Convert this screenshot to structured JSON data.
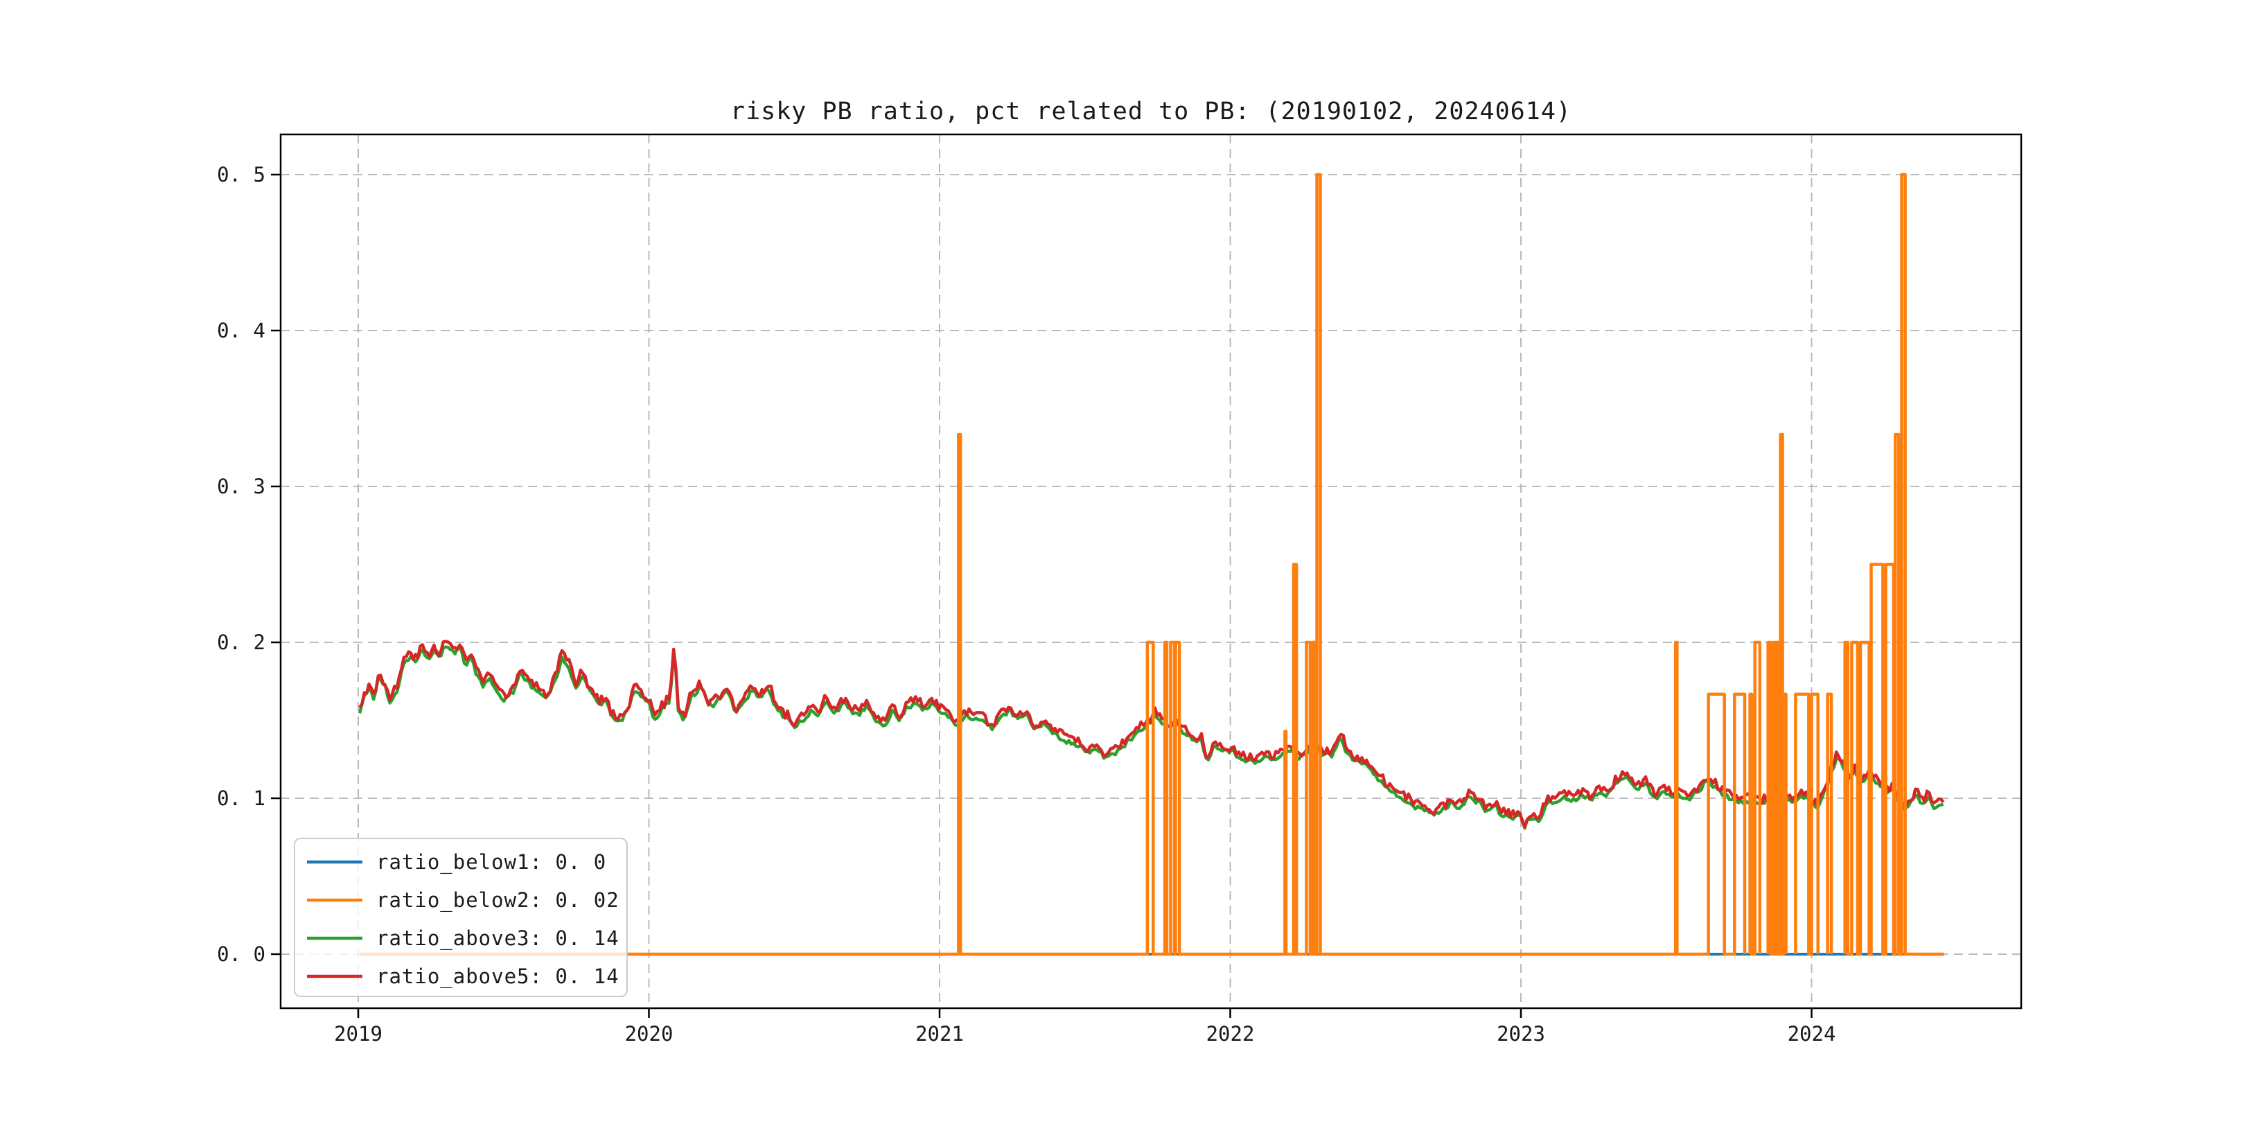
{
  "chart_data": {
    "type": "line",
    "title": "risky PB ratio, pct related to PB: (20190102, 20240614)",
    "date_range": [
      "20190102",
      "20240614"
    ],
    "grid": true,
    "x_axis": {
      "tick_labels": [
        "2019",
        "2020",
        "2021",
        "2022",
        "2023",
        "2024"
      ],
      "tick_years": [
        2019,
        2020,
        2021,
        2022,
        2023,
        2024
      ]
    },
    "y_axis": {
      "tick_labels": [
        "0. 0",
        "0. 1",
        "0. 2",
        "0. 3",
        "0. 4",
        "0. 5"
      ],
      "tick_values": [
        0.0,
        0.1,
        0.2,
        0.3,
        0.4,
        0.5
      ],
      "ylim": [
        -0.035,
        0.526
      ]
    },
    "legend": {
      "position": "lower left",
      "entries": [
        {
          "label": "ratio_below1: 0. 0",
          "series": "ratio_below1",
          "color": "#1f77b4"
        },
        {
          "label": "ratio_below2: 0. 02",
          "series": "ratio_below2",
          "color": "#ff7f0e"
        },
        {
          "label": "ratio_above3: 0. 14",
          "series": "ratio_above3",
          "color": "#2ca02c"
        },
        {
          "label": "ratio_above5: 0. 14",
          "series": "ratio_above5",
          "color": "#d62728"
        }
      ]
    },
    "series": [
      {
        "name": "ratio_below1",
        "color": "#1f77b4",
        "kind": "constant",
        "value": 0.0,
        "t_start": 2019.005,
        "t_end": 2024.455,
        "width": 4
      },
      {
        "name": "ratio_below2",
        "color": "#ff7f0e",
        "kind": "step-pulses",
        "baseline": 0.0,
        "t_start": 2019.005,
        "t_end": 2024.455,
        "width": 4.5,
        "dense_window": [
          2023.78,
          2024.325
        ],
        "events": [
          [
            2021.065,
            2021.072,
            0.3333
          ],
          [
            2021.715,
            2021.735,
            0.2
          ],
          [
            2021.775,
            2021.782,
            0.2
          ],
          [
            2021.795,
            2021.808,
            0.2
          ],
          [
            2021.812,
            2021.825,
            0.2
          ],
          [
            2022.188,
            2022.192,
            0.1429
          ],
          [
            2022.218,
            2022.228,
            0.25
          ],
          [
            2022.262,
            2022.275,
            0.2
          ],
          [
            2022.282,
            2022.29,
            0.2
          ],
          [
            2022.298,
            2022.31,
            0.5
          ],
          [
            2023.532,
            2023.537,
            0.2
          ],
          [
            2023.645,
            2023.7,
            0.1667
          ],
          [
            2023.735,
            2023.77,
            0.1667
          ],
          [
            2023.788,
            2023.794,
            0.1667
          ],
          [
            2023.805,
            2023.822,
            0.2
          ],
          [
            2023.85,
            2023.86,
            0.2
          ],
          [
            2023.868,
            2023.878,
            0.2
          ],
          [
            2023.882,
            2023.89,
            0.2
          ],
          [
            2023.893,
            2023.9,
            0.3333
          ],
          [
            2023.903,
            2023.912,
            0.1667
          ],
          [
            2023.945,
            2023.99,
            0.1667
          ],
          [
            2024.0,
            2024.022,
            0.1667
          ],
          [
            2024.055,
            2024.068,
            0.1667
          ],
          [
            2024.115,
            2024.125,
            0.2
          ],
          [
            2024.138,
            2024.158,
            0.2
          ],
          [
            2024.168,
            2024.198,
            0.2
          ],
          [
            2024.205,
            2024.245,
            0.25
          ],
          [
            2024.255,
            2024.282,
            0.25
          ],
          [
            2024.288,
            2024.3,
            0.3333
          ],
          [
            2024.31,
            2024.322,
            0.5
          ]
        ]
      },
      {
        "name": "ratio_above3",
        "color": "#2ca02c",
        "kind": "anchors",
        "anchors_ref": "pb_anchors",
        "offset": -0.0025,
        "noise": 0.0015,
        "seed": 11,
        "width": 4.5
      },
      {
        "name": "ratio_above5",
        "color": "#d62728",
        "kind": "anchors",
        "anchors_ref": "pb_anchors",
        "offset": 0,
        "noise": 0.0028,
        "seed": 3,
        "width": 4.5
      }
    ],
    "pb_anchors": [
      [
        2019.005,
        0.157
      ],
      [
        2019.02,
        0.168
      ],
      [
        2019.04,
        0.172
      ],
      [
        2019.055,
        0.167
      ],
      [
        2019.07,
        0.18
      ],
      [
        2019.09,
        0.175
      ],
      [
        2019.11,
        0.163
      ],
      [
        2019.13,
        0.171
      ],
      [
        2019.16,
        0.19
      ],
      [
        2019.18,
        0.193
      ],
      [
        2019.2,
        0.19
      ],
      [
        2019.22,
        0.197
      ],
      [
        2019.24,
        0.192
      ],
      [
        2019.26,
        0.197
      ],
      [
        2019.28,
        0.194
      ],
      [
        2019.3,
        0.2
      ],
      [
        2019.33,
        0.196
      ],
      [
        2019.35,
        0.199
      ],
      [
        2019.37,
        0.189
      ],
      [
        2019.39,
        0.192
      ],
      [
        2019.41,
        0.181
      ],
      [
        2019.43,
        0.175
      ],
      [
        2019.45,
        0.18
      ],
      [
        2019.47,
        0.172
      ],
      [
        2019.5,
        0.166
      ],
      [
        2019.53,
        0.17
      ],
      [
        2019.56,
        0.183
      ],
      [
        2019.58,
        0.178
      ],
      [
        2019.6,
        0.174
      ],
      [
        2019.63,
        0.168
      ],
      [
        2019.65,
        0.167
      ],
      [
        2019.68,
        0.179
      ],
      [
        2019.7,
        0.192
      ],
      [
        2019.72,
        0.188
      ],
      [
        2019.75,
        0.173
      ],
      [
        2019.77,
        0.181
      ],
      [
        2019.8,
        0.17
      ],
      [
        2019.83,
        0.163
      ],
      [
        2019.85,
        0.165
      ],
      [
        2019.87,
        0.156
      ],
      [
        2019.9,
        0.151
      ],
      [
        2019.93,
        0.16
      ],
      [
        2019.95,
        0.172
      ],
      [
        2019.98,
        0.167
      ],
      [
        2020.0,
        0.164
      ],
      [
        2020.02,
        0.153
      ],
      [
        2020.05,
        0.16
      ],
      [
        2020.07,
        0.165
      ],
      [
        2020.088,
        0.198
      ],
      [
        2020.1,
        0.158
      ],
      [
        2020.12,
        0.154
      ],
      [
        2020.15,
        0.169
      ],
      [
        2020.18,
        0.173
      ],
      [
        2020.21,
        0.161
      ],
      [
        2020.24,
        0.166
      ],
      [
        2020.27,
        0.172
      ],
      [
        2020.3,
        0.158
      ],
      [
        2020.33,
        0.165
      ],
      [
        2020.36,
        0.172
      ],
      [
        2020.38,
        0.167
      ],
      [
        2020.41,
        0.173
      ],
      [
        2020.44,
        0.16
      ],
      [
        2020.47,
        0.154
      ],
      [
        2020.5,
        0.149
      ],
      [
        2020.53,
        0.153
      ],
      [
        2020.56,
        0.158
      ],
      [
        2020.58,
        0.155
      ],
      [
        2020.61,
        0.164
      ],
      [
        2020.64,
        0.158
      ],
      [
        2020.67,
        0.163
      ],
      [
        2020.7,
        0.158
      ],
      [
        2020.72,
        0.156
      ],
      [
        2020.75,
        0.161
      ],
      [
        2020.78,
        0.152
      ],
      [
        2020.81,
        0.15
      ],
      [
        2020.84,
        0.158
      ],
      [
        2020.86,
        0.153
      ],
      [
        2020.89,
        0.161
      ],
      [
        2020.92,
        0.164
      ],
      [
        2020.95,
        0.159
      ],
      [
        2020.98,
        0.163
      ],
      [
        2021.0,
        0.158
      ],
      [
        2021.03,
        0.155
      ],
      [
        2021.06,
        0.15
      ],
      [
        2021.09,
        0.156
      ],
      [
        2021.12,
        0.153
      ],
      [
        2021.15,
        0.152
      ],
      [
        2021.18,
        0.147
      ],
      [
        2021.21,
        0.155
      ],
      [
        2021.24,
        0.158
      ],
      [
        2021.27,
        0.154
      ],
      [
        2021.3,
        0.155
      ],
      [
        2021.33,
        0.147
      ],
      [
        2021.36,
        0.151
      ],
      [
        2021.39,
        0.144
      ],
      [
        2021.42,
        0.141
      ],
      [
        2021.45,
        0.138
      ],
      [
        2021.48,
        0.136
      ],
      [
        2021.51,
        0.131
      ],
      [
        2021.54,
        0.134
      ],
      [
        2021.57,
        0.129
      ],
      [
        2021.6,
        0.131
      ],
      [
        2021.63,
        0.136
      ],
      [
        2021.66,
        0.141
      ],
      [
        2021.69,
        0.147
      ],
      [
        2021.72,
        0.15
      ],
      [
        2021.74,
        0.156
      ],
      [
        2021.76,
        0.152
      ],
      [
        2021.79,
        0.148
      ],
      [
        2021.82,
        0.15
      ],
      [
        2021.84,
        0.145
      ],
      [
        2021.87,
        0.141
      ],
      [
        2021.9,
        0.139
      ],
      [
        2021.92,
        0.128
      ],
      [
        2021.95,
        0.136
      ],
      [
        2021.98,
        0.134
      ],
      [
        2022.0,
        0.133
      ],
      [
        2022.03,
        0.129
      ],
      [
        2022.06,
        0.127
      ],
      [
        2022.09,
        0.125
      ],
      [
        2022.12,
        0.129
      ],
      [
        2022.15,
        0.127
      ],
      [
        2022.18,
        0.13
      ],
      [
        2022.21,
        0.134
      ],
      [
        2022.23,
        0.128
      ],
      [
        2022.26,
        0.131
      ],
      [
        2022.29,
        0.135
      ],
      [
        2022.32,
        0.131
      ],
      [
        2022.35,
        0.13
      ],
      [
        2022.38,
        0.141
      ],
      [
        2022.4,
        0.133
      ],
      [
        2022.43,
        0.127
      ],
      [
        2022.46,
        0.125
      ],
      [
        2022.49,
        0.119
      ],
      [
        2022.52,
        0.113
      ],
      [
        2022.55,
        0.108
      ],
      [
        2022.58,
        0.104
      ],
      [
        2022.61,
        0.101
      ],
      [
        2022.64,
        0.096
      ],
      [
        2022.67,
        0.095
      ],
      [
        2022.7,
        0.092
      ],
      [
        2022.73,
        0.095
      ],
      [
        2022.76,
        0.099
      ],
      [
        2022.79,
        0.097
      ],
      [
        2022.82,
        0.103
      ],
      [
        2022.85,
        0.1
      ],
      [
        2022.88,
        0.095
      ],
      [
        2022.91,
        0.097
      ],
      [
        2022.94,
        0.091
      ],
      [
        2022.97,
        0.09
      ],
      [
        2023.0,
        0.092
      ],
      [
        2023.01,
        0.083
      ],
      [
        2023.03,
        0.09
      ],
      [
        2023.06,
        0.088
      ],
      [
        2023.09,
        0.099
      ],
      [
        2023.12,
        0.1
      ],
      [
        2023.15,
        0.103
      ],
      [
        2023.18,
        0.101
      ],
      [
        2023.21,
        0.105
      ],
      [
        2023.24,
        0.102
      ],
      [
        2023.27,
        0.107
      ],
      [
        2023.3,
        0.105
      ],
      [
        2023.33,
        0.112
      ],
      [
        2023.36,
        0.117
      ],
      [
        2023.4,
        0.109
      ],
      [
        2023.43,
        0.111
      ],
      [
        2023.46,
        0.103
      ],
      [
        2023.49,
        0.106
      ],
      [
        2023.52,
        0.104
      ],
      [
        2023.55,
        0.104
      ],
      [
        2023.58,
        0.102
      ],
      [
        2023.61,
        0.107
      ],
      [
        2023.64,
        0.114
      ],
      [
        2023.67,
        0.11
      ],
      [
        2023.7,
        0.104
      ],
      [
        2023.73,
        0.102
      ],
      [
        2023.76,
        0.1
      ],
      [
        2023.79,
        0.101
      ],
      [
        2023.82,
        0.099
      ],
      [
        2023.85,
        0.101
      ],
      [
        2023.88,
        0.1
      ],
      [
        2023.91,
        0.102
      ],
      [
        2023.94,
        0.1
      ],
      [
        2023.97,
        0.104
      ],
      [
        2024.0,
        0.1
      ],
      [
        2024.02,
        0.097
      ],
      [
        2024.05,
        0.109
      ],
      [
        2024.07,
        0.121
      ],
      [
        2024.09,
        0.128
      ],
      [
        2024.11,
        0.123
      ],
      [
        2024.13,
        0.115
      ],
      [
        2024.15,
        0.119
      ],
      [
        2024.17,
        0.113
      ],
      [
        2024.19,
        0.116
      ],
      [
        2024.21,
        0.115
      ],
      [
        2024.24,
        0.11
      ],
      [
        2024.26,
        0.107
      ],
      [
        2024.28,
        0.108
      ],
      [
        2024.3,
        0.101
      ],
      [
        2024.32,
        0.094
      ],
      [
        2024.34,
        0.1
      ],
      [
        2024.36,
        0.104
      ],
      [
        2024.38,
        0.098
      ],
      [
        2024.4,
        0.103
      ],
      [
        2024.42,
        0.097
      ],
      [
        2024.44,
        0.099
      ],
      [
        2024.455,
        0.098
      ]
    ]
  }
}
